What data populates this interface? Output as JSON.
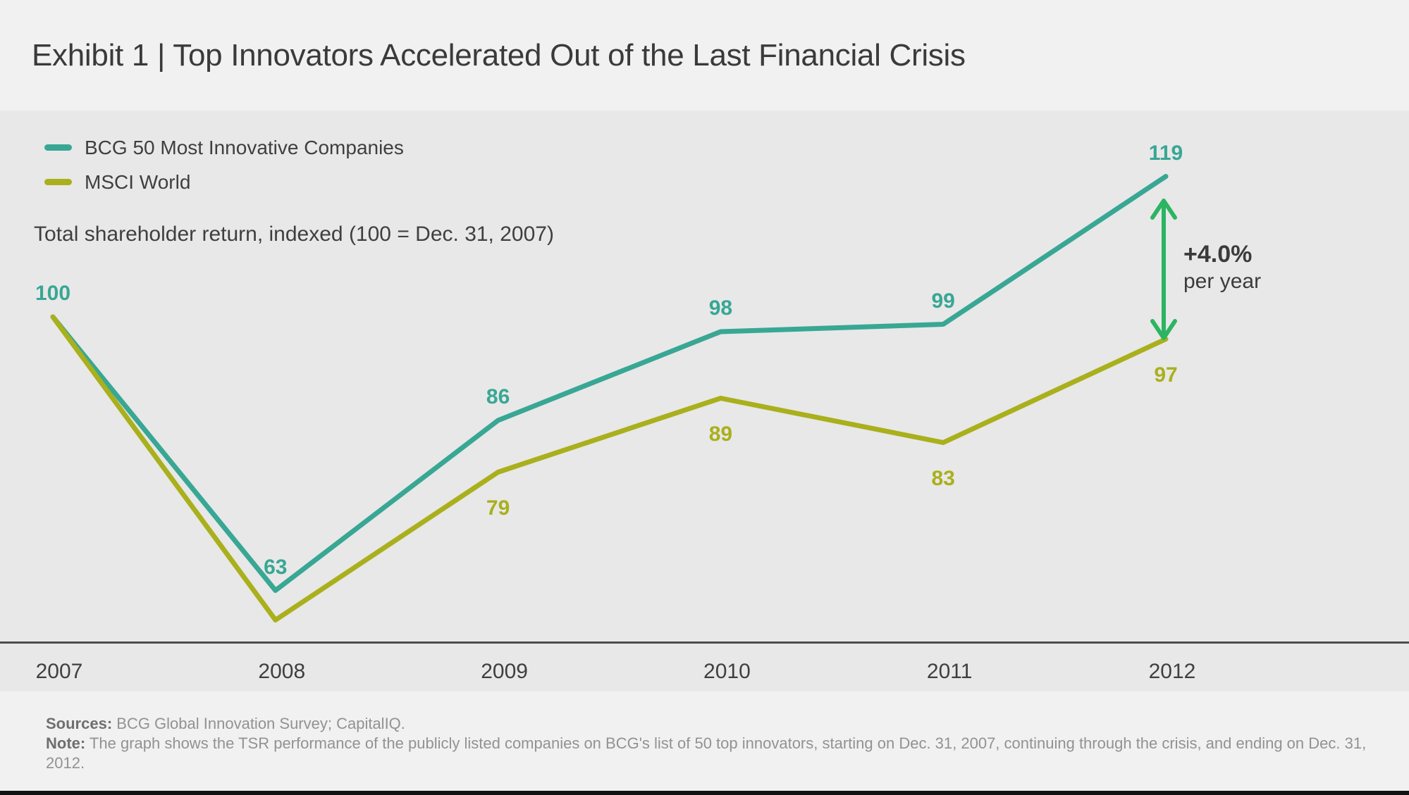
{
  "header": {
    "title": "Exhibit 1 | Top Innovators Accelerated Out of the Last Financial Crisis"
  },
  "legend": {
    "items": [
      {
        "label": "BCG 50 Most Innovative Companies",
        "color": "#38a794"
      },
      {
        "label": "MSCI World",
        "color": "#a9b01c"
      }
    ]
  },
  "subtitle": "Total shareholder return, indexed (100 = Dec. 31, 2007)",
  "chart_data": {
    "type": "line",
    "title": "Exhibit 1 | Top Innovators Accelerated Out of the Last Financial Crisis",
    "ylabel": "Total shareholder return, indexed (100 = Dec. 31, 2007)",
    "x": [
      2007,
      2008,
      2009,
      2010,
      2011,
      2012
    ],
    "series": [
      {
        "name": "BCG 50 Most Innovative Companies",
        "color": "#38a794",
        "values": [
          100,
          63,
          86,
          98,
          99,
          119
        ],
        "labels": [
          "100",
          "63",
          "86",
          "98",
          "99",
          "119"
        ],
        "label_position": "above"
      },
      {
        "name": "MSCI World",
        "color": "#a9b01c",
        "values": [
          100,
          59,
          79,
          89,
          83,
          97
        ],
        "labels": [
          null,
          null,
          "79",
          "89",
          "83",
          "97"
        ],
        "label_position": "below"
      }
    ],
    "annotation": {
      "value": "+4.0%",
      "unit": "per year",
      "arrow_color": "#2db462"
    },
    "grid": false,
    "legend_position": "top-left",
    "baseline_value": 49
  },
  "x_axis": {
    "labels": [
      "2007",
      "2008",
      "2009",
      "2010",
      "2011",
      "2012"
    ]
  },
  "footer": {
    "sources_label": "Sources:",
    "sources_text": " BCG Global Innovation Survey; CapitalIQ.",
    "note_label": "Note:",
    "note_text": " The graph shows the TSR performance of the publicly listed companies on BCG's list of 50 top innovators, starting on Dec. 31, 2007, continuing through the crisis, and ending on Dec. 31, 2012."
  },
  "colors": {
    "teal": "#38a794",
    "olive": "#a9b01c",
    "arrow_green": "#2db462",
    "header_bg": "#f1f1f1",
    "chart_bg": "#e8e8e8",
    "footer_bg": "#f1f1f1",
    "axis": "#4d4d4d",
    "text_dark": "#3a3a3a",
    "footer_text": "#929292",
    "bottom_bar": "#121212"
  }
}
